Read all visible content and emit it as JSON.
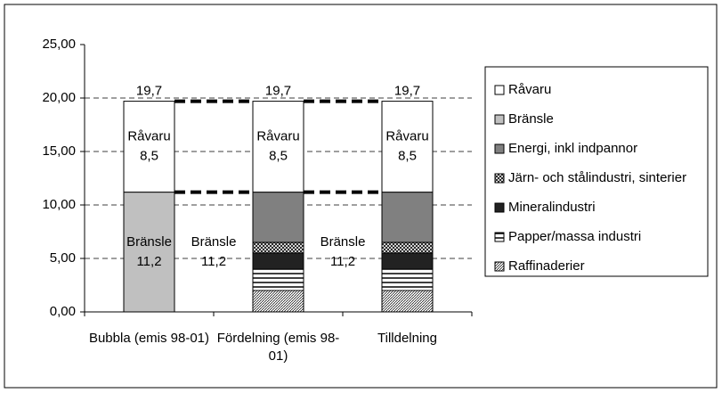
{
  "chart_data": {
    "type": "stacked_bar",
    "categories": [
      "Bubbla (emis 98-01)",
      "Fördelning (emis 98-01)",
      "Tilldelning"
    ],
    "series": [
      {
        "name": "Råvaru",
        "color": "#ffffff",
        "values": [
          8.5,
          8.5,
          8.5
        ],
        "value_labels": [
          "8,5",
          "8,5",
          "8,5"
        ]
      },
      {
        "name": "Bränsle",
        "color": "#c0c0c0",
        "values": [
          11.2,
          null,
          null
        ],
        "value_labels": [
          "11,2",
          null,
          null
        ]
      },
      {
        "name": "Energi, inkl indpannor",
        "color": "#808080",
        "values": [
          null,
          4.7,
          4.7
        ]
      },
      {
        "name": "Järn- och stålindustri, sinterier",
        "color": "#ffffff",
        "pattern": "crosshatch",
        "values": [
          null,
          1.0,
          1.0
        ]
      },
      {
        "name": "Mineralindustri",
        "color": "#222222",
        "values": [
          null,
          1.5,
          1.5
        ]
      },
      {
        "name": "Papper/massa industri",
        "color": "#ffffff",
        "pattern": "hstripes",
        "values": [
          null,
          2.0,
          2.0
        ]
      },
      {
        "name": "Raffinaderier",
        "color": "#ffffff",
        "pattern": "diagonal",
        "values": [
          null,
          2.0,
          2.0
        ]
      }
    ],
    "totals": [
      19.7,
      19.7,
      19.7
    ],
    "total_labels": [
      "19,7",
      "19,7",
      "19,7"
    ],
    "annotations": [
      {
        "text": "Bränsle",
        "label": "11,2"
      },
      {
        "text": "Bränsle",
        "label": "11,2"
      }
    ],
    "ylim": [
      0,
      25
    ],
    "yticks": [
      {
        "value": 0,
        "label": "0,00"
      },
      {
        "value": 5,
        "label": "5,00"
      },
      {
        "value": 10,
        "label": "10,00"
      },
      {
        "value": 15,
        "label": "15,00"
      },
      {
        "value": 20,
        "label": "20,00"
      },
      {
        "value": 25,
        "label": "25,00"
      }
    ],
    "grid": true,
    "legend": "right"
  }
}
